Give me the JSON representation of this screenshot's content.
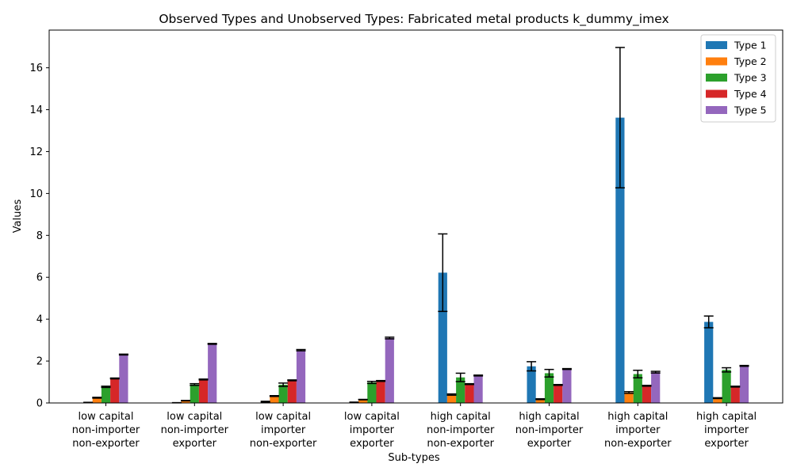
{
  "chart_data": {
    "type": "bar",
    "title": "Observed Types and Unobserved Types: Fabricated metal products k_dummy_imex",
    "xlabel": "Sub-types",
    "ylabel": "Values",
    "ylim": [
      0,
      17.8
    ],
    "yticks": [
      0,
      2,
      4,
      6,
      8,
      10,
      12,
      14,
      16
    ],
    "legend_position": "top-right",
    "grid": false,
    "categories": [
      [
        "low capital",
        "non-importer",
        "non-exporter"
      ],
      [
        "low capital",
        "non-importer",
        "exporter"
      ],
      [
        "low capital",
        "importer",
        "non-exporter"
      ],
      [
        "low capital",
        "importer",
        "exporter"
      ],
      [
        "high capital",
        "non-importer",
        "non-exporter"
      ],
      [
        "high capital",
        "non-importer",
        "exporter"
      ],
      [
        "high capital",
        "importer",
        "non-exporter"
      ],
      [
        "high capital",
        "importer",
        "exporter"
      ]
    ],
    "series": [
      {
        "name": "Type 1",
        "color": "#1f77b4",
        "values": [
          0.02,
          0.01,
          0.06,
          0.03,
          6.22,
          1.75,
          13.62,
          3.87
        ],
        "errors": [
          0.01,
          0.005,
          0.02,
          0.01,
          1.85,
          0.22,
          3.35,
          0.28
        ]
      },
      {
        "name": "Type 2",
        "color": "#ff7f0e",
        "values": [
          0.25,
          0.11,
          0.33,
          0.16,
          0.4,
          0.18,
          0.5,
          0.23
        ],
        "errors": [
          0.02,
          0.01,
          0.02,
          0.01,
          0.03,
          0.02,
          0.04,
          0.02
        ]
      },
      {
        "name": "Type 3",
        "color": "#2ca02c",
        "values": [
          0.77,
          0.88,
          0.87,
          0.98,
          1.22,
          1.42,
          1.38,
          1.58
        ],
        "errors": [
          0.03,
          0.04,
          0.08,
          0.05,
          0.2,
          0.18,
          0.18,
          0.1
        ]
      },
      {
        "name": "Type 4",
        "color": "#d62728",
        "values": [
          1.17,
          1.12,
          1.08,
          1.05,
          0.9,
          0.86,
          0.82,
          0.78
        ],
        "errors": [
          0.02,
          0.02,
          0.02,
          0.02,
          0.02,
          0.02,
          0.02,
          0.02
        ]
      },
      {
        "name": "Type 5",
        "color": "#9467bd",
        "values": [
          2.31,
          2.82,
          2.52,
          3.1,
          1.31,
          1.62,
          1.47,
          1.77
        ],
        "errors": [
          0.02,
          0.02,
          0.03,
          0.04,
          0.02,
          0.02,
          0.04,
          0.02
        ]
      }
    ]
  }
}
